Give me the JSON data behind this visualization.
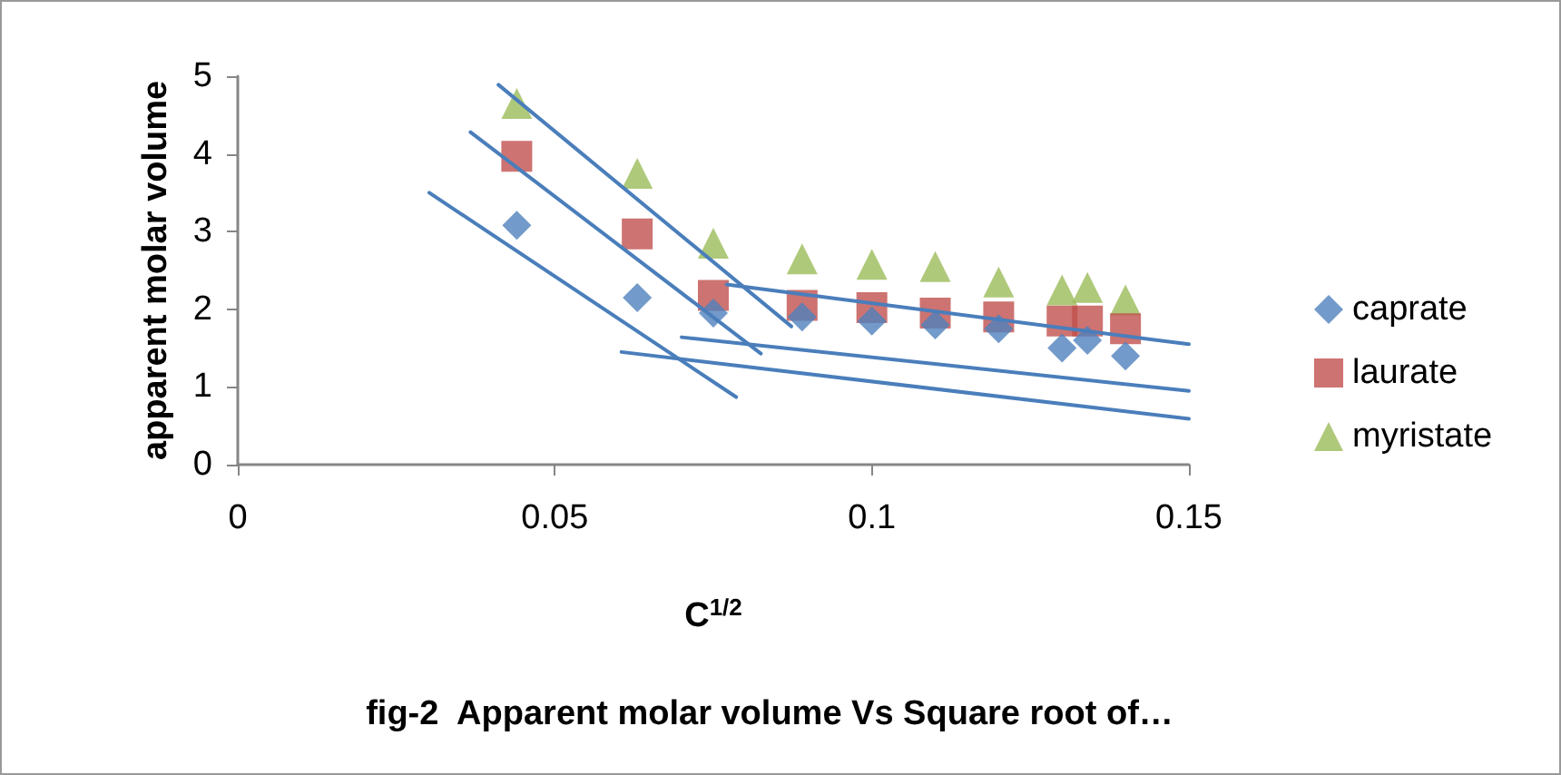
{
  "chart_data": {
    "type": "scatter",
    "title": "fig-2  Apparent molar volume Vs Square root of…",
    "xlabel": "C$^{1/2}$",
    "ylabel": "apparent molar volume",
    "x": [
      0.044,
      0.063,
      0.075,
      0.089,
      0.1,
      0.11,
      0.12,
      0.13,
      0.134,
      0.14
    ],
    "series": [
      {
        "name": "caprate",
        "color": "#4f81bd",
        "marker": "diamond",
        "values": [
          3.08,
          2.15,
          1.95,
          1.9,
          1.85,
          1.8,
          1.75,
          1.5,
          1.6,
          1.4
        ]
      },
      {
        "name": "laurate",
        "color": "#c0504d",
        "marker": "square",
        "values": [
          3.97,
          2.97,
          2.18,
          2.05,
          2.02,
          1.95,
          1.9,
          1.85,
          1.85,
          1.75
        ]
      },
      {
        "name": "myristate",
        "color": "#9bbb59",
        "marker": "triangle",
        "values": [
          4.65,
          3.75,
          2.85,
          2.65,
          2.58,
          2.55,
          2.35,
          2.25,
          2.28,
          2.12
        ]
      },
      {
        "type": "line",
        "color": "#4a7ebb",
        "marker": "none",
        "x": [
          0.0302,
          0.0786
        ],
        "values": [
          3.5,
          0.87
        ]
      },
      {
        "type": "line",
        "color": "#4a7ebb",
        "marker": "none",
        "x": [
          0.0367,
          0.0825
        ],
        "values": [
          4.28,
          1.43
        ]
      },
      {
        "type": "line",
        "color": "#4a7ebb",
        "marker": "none",
        "x": [
          0.0411,
          0.0873
        ],
        "values": [
          4.89,
          1.78
        ]
      },
      {
        "type": "line",
        "color": "#4a7ebb",
        "marker": "none",
        "x": [
          0.0771,
          0.15
        ],
        "values": [
          2.32,
          1.55
        ]
      },
      {
        "type": "line",
        "color": "#4a7ebb",
        "marker": "none",
        "x": [
          0.07,
          0.15
        ],
        "values": [
          1.64,
          0.95
        ]
      },
      {
        "type": "line",
        "color": "#4a7ebb",
        "marker": "none",
        "x": [
          0.0605,
          0.15
        ],
        "values": [
          1.45,
          0.59
        ]
      }
    ],
    "xlim": [
      0,
      0.15
    ],
    "xticks": [
      0,
      0.05,
      0.1,
      0.15
    ],
    "ylim": [
      0,
      5
    ],
    "yticks": [
      0,
      1,
      2,
      3,
      4,
      5
    ],
    "grid": false,
    "legend": "right"
  }
}
